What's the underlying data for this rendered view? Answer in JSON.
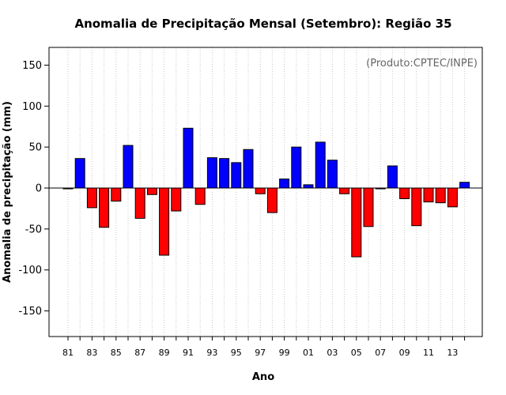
{
  "chart_data": {
    "type": "bar",
    "title": "Anomalia de Precipitação Mensal (Setembro): Região 35",
    "xlabel": "Ano",
    "ylabel": "Anomalia de precipitação (mm)",
    "annotation": "(Produto:CPTEC/INPE)",
    "ylim": [
      -180,
      175
    ],
    "yticks": [
      -150,
      -100,
      -50,
      0,
      50,
      100,
      150
    ],
    "xticklabels": [
      "81",
      "83",
      "85",
      "87",
      "89",
      "91",
      "93",
      "95",
      "97",
      "99",
      "01",
      "03",
      "05",
      "07",
      "09",
      "11",
      "13"
    ],
    "categories": [
      "1981",
      "1982",
      "1983",
      "1984",
      "1985",
      "1986",
      "1987",
      "1988",
      "1989",
      "1990",
      "1991",
      "1992",
      "1993",
      "1994",
      "1995",
      "1996",
      "1997",
      "1998",
      "1999",
      "2000",
      "2001",
      "2002",
      "2003",
      "2004",
      "2005",
      "2006",
      "2007",
      "2008",
      "2009",
      "2010",
      "2011",
      "2012",
      "2013",
      "2014"
    ],
    "values": [
      -1,
      36,
      -24,
      -48,
      -16,
      52,
      -37,
      -8,
      -82,
      -28,
      73,
      -20,
      37,
      36,
      31,
      47,
      -7,
      -30,
      11,
      50,
      4,
      56,
      34,
      -7,
      -84,
      -47,
      -1,
      27,
      -13,
      -46,
      -17,
      -18,
      -23,
      7
    ],
    "colors": {
      "positive": "#0000ff",
      "negative": "#ff0000",
      "grid": "#c8c8c8",
      "axis": "#000000"
    }
  }
}
